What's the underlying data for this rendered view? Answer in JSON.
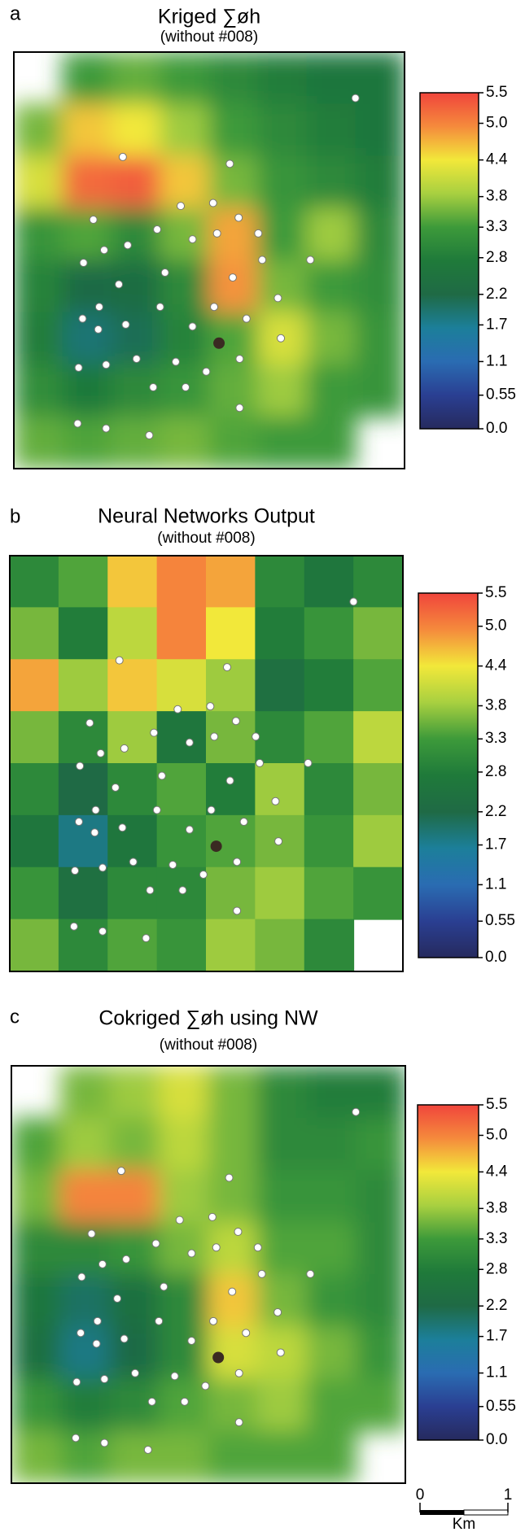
{
  "chart_data": [
    {
      "type": "heatmap",
      "panel_label": "a",
      "title": "Kriged ∑øh",
      "subtitle": "(without #008)",
      "smooth": true,
      "clim": [
        0,
        5.5
      ],
      "cticks": [
        {
          "value": 0,
          "label": "0.0"
        },
        0.55,
        1.1,
        1.7,
        2.2,
        2.8,
        3.3,
        3.8,
        4.4,
        {
          "value": 5,
          "label": "5.0"
        },
        5.5
      ],
      "colormap": [
        "#262a5e",
        "#2a3f92",
        "#2a6cb2",
        "#1c7f9a",
        "#1f6a45",
        "#1f7a3a",
        "#3d9a3a",
        "#a8d040",
        "#f2e83a",
        "#f58a3c",
        "#f0453c"
      ],
      "z": [
        [
          null,
          3.3,
          3.5,
          3.3,
          3.0,
          2.8,
          2.6,
          2.6
        ],
        [
          3.6,
          4.6,
          4.4,
          3.8,
          3.3,
          3.0,
          2.8,
          2.6
        ],
        [
          4.2,
          5.2,
          5.3,
          4.6,
          3.6,
          3.2,
          3.0,
          2.8
        ],
        [
          3.2,
          3.4,
          3.0,
          3.6,
          4.8,
          3.3,
          3.8,
          3.0
        ],
        [
          2.9,
          2.2,
          2.3,
          3.0,
          4.9,
          3.6,
          3.3,
          3.1
        ],
        [
          2.8,
          1.9,
          2.1,
          2.9,
          3.4,
          4.2,
          3.6,
          3.2
        ],
        [
          3.1,
          2.7,
          3.0,
          3.2,
          3.5,
          3.8,
          3.3,
          3.2
        ],
        [
          3.5,
          3.4,
          3.5,
          3.6,
          3.4,
          3.3,
          3.3,
          null
        ]
      ]
    },
    {
      "type": "heatmap",
      "panel_label": "b",
      "title": "Neural Networks Output",
      "subtitle": "(without #008)",
      "smooth": false,
      "clim": [
        0,
        5.5
      ],
      "cticks": [
        {
          "value": 0,
          "label": "0.0"
        },
        0.55,
        1.1,
        1.7,
        2.2,
        2.8,
        3.3,
        3.8,
        4.4,
        {
          "value": 5,
          "label": "5.0"
        },
        5.5
      ],
      "colormap": [
        "#262a5e",
        "#2a3f92",
        "#2a6cb2",
        "#1c7f9a",
        "#1f6a45",
        "#1f7a3a",
        "#3d9a3a",
        "#a8d040",
        "#f2e83a",
        "#f58a3c",
        "#f0453c"
      ],
      "z": [
        [
          3.0,
          3.4,
          4.6,
          5.0,
          4.8,
          3.0,
          2.6,
          3.0
        ],
        [
          3.6,
          2.8,
          4.0,
          5.0,
          4.4,
          2.8,
          3.2,
          3.6
        ],
        [
          4.8,
          3.8,
          4.6,
          4.2,
          3.8,
          2.4,
          2.8,
          3.4
        ],
        [
          3.6,
          3.0,
          3.8,
          2.6,
          3.6,
          3.0,
          3.4,
          4.0
        ],
        [
          3.0,
          2.2,
          3.0,
          3.4,
          2.8,
          3.8,
          3.0,
          3.6
        ],
        [
          2.6,
          1.8,
          2.6,
          3.2,
          3.4,
          3.6,
          3.2,
          3.8
        ],
        [
          3.2,
          2.4,
          3.0,
          3.0,
          3.6,
          3.8,
          3.4,
          3.2
        ],
        [
          3.6,
          3.0,
          3.4,
          3.2,
          3.8,
          3.6,
          3.0,
          null
        ]
      ]
    },
    {
      "type": "heatmap",
      "panel_label": "c",
      "title": "Cokriged ∑øh using NW",
      "subtitle": "(without #008)",
      "smooth": true,
      "clim": [
        0,
        5.5
      ],
      "cticks": [
        {
          "value": 0,
          "label": "0.0"
        },
        0.55,
        1.1,
        1.7,
        2.2,
        2.8,
        3.3,
        3.8,
        4.4,
        {
          "value": 5,
          "label": "5.0"
        },
        5.5
      ],
      "colormap": [
        "#262a5e",
        "#2a3f92",
        "#2a6cb2",
        "#1c7f9a",
        "#1f6a45",
        "#1f7a3a",
        "#3d9a3a",
        "#a8d040",
        "#f2e83a",
        "#f58a3c",
        "#f0453c"
      ],
      "z": [
        [
          null,
          3.6,
          3.8,
          4.2,
          3.6,
          3.0,
          2.8,
          2.8
        ],
        [
          3.4,
          3.8,
          3.6,
          4.0,
          3.6,
          3.0,
          3.0,
          3.2
        ],
        [
          3.6,
          5.0,
          5.0,
          3.8,
          3.6,
          3.2,
          3.2,
          3.0
        ],
        [
          3.0,
          3.0,
          3.2,
          3.6,
          4.0,
          3.4,
          3.4,
          3.0
        ],
        [
          2.6,
          2.0,
          2.4,
          3.0,
          4.6,
          3.6,
          3.2,
          3.0
        ],
        [
          2.4,
          1.8,
          2.2,
          3.0,
          4.2,
          4.0,
          3.6,
          3.2
        ],
        [
          3.2,
          2.8,
          3.0,
          3.4,
          3.6,
          3.8,
          3.4,
          3.4
        ],
        [
          3.6,
          3.4,
          3.6,
          3.6,
          3.4,
          3.4,
          3.4,
          null
        ]
      ]
    }
  ],
  "scale_bar": {
    "ticks": [
      0,
      1
    ],
    "unit": "Km"
  }
}
